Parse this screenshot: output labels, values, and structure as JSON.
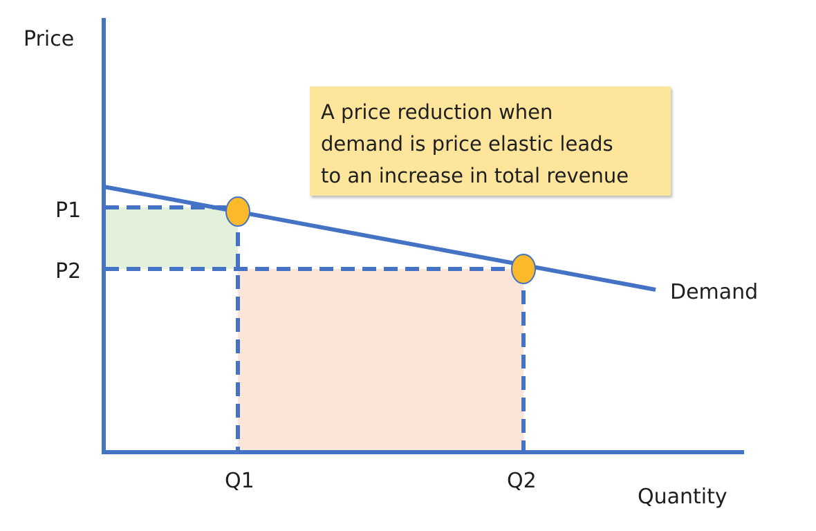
{
  "axes": {
    "y_label": "Price",
    "x_label": "Quantity"
  },
  "prices": {
    "p1_label": "P1",
    "p2_label": "P2"
  },
  "quantities": {
    "q1_label": "Q1",
    "q2_label": "Q2"
  },
  "curve": {
    "label": "Demand"
  },
  "callout": {
    "lines": [
      "A price reduction when",
      "demand is price elastic leads",
      "to an increase in total revenue"
    ]
  },
  "colors": {
    "axis": "#4472c4",
    "curve": "#4472c4",
    "marker_fill": "#fbb92c",
    "marker_stroke": "#4472c4",
    "revenue_lost": "#e3f0dc",
    "revenue_gained": "#fbe5d9",
    "callout_bg": "#fde59c"
  }
}
